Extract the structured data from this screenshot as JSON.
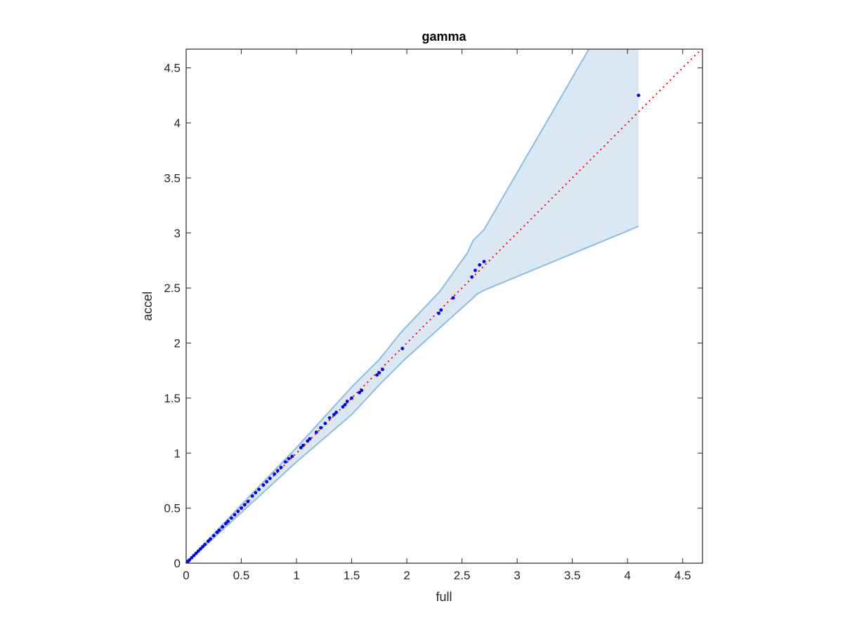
{
  "chart_data": {
    "type": "scatter",
    "title": "gamma",
    "xlabel": "full",
    "ylabel": "accel",
    "xlim": [
      0,
      4.68
    ],
    "ylim": [
      0,
      4.67
    ],
    "xticks": [
      0,
      0.5,
      1,
      1.5,
      2,
      2.5,
      3,
      3.5,
      4,
      4.5
    ],
    "yticks": [
      0,
      0.5,
      1,
      1.5,
      2,
      2.5,
      3,
      3.5,
      4,
      4.5
    ],
    "xtick_labels": [
      "0",
      "0.5",
      "1",
      "1.5",
      "2",
      "2.5",
      "3",
      "3.5",
      "4",
      "4.5"
    ],
    "ytick_labels": [
      "0",
      "0.5",
      "1",
      "1.5",
      "2",
      "2.5",
      "3",
      "3.5",
      "4",
      "4.5"
    ],
    "grid": false,
    "box": true,
    "colors": {
      "points": "#0000ff",
      "reference_line": "#ff0000",
      "band_fill": "#d9e8f3",
      "band_edge": "#8bbde0"
    },
    "reference_line": {
      "style": "dotted",
      "x": [
        0,
        4.68
      ],
      "y": [
        0,
        4.68
      ]
    },
    "band": {
      "upper": {
        "x": [
          0,
          0.5,
          1.0,
          1.5,
          1.75,
          1.95,
          2.3,
          2.55,
          2.6,
          2.7,
          3.65,
          4.1
        ],
        "y": [
          0,
          0.53,
          1.05,
          1.6,
          1.85,
          2.1,
          2.47,
          2.82,
          2.93,
          3.03,
          4.67,
          5.45
        ]
      },
      "lower": {
        "x": [
          0,
          0.5,
          1.0,
          1.5,
          1.75,
          1.98,
          2.6,
          2.63,
          2.7,
          4.1
        ],
        "y": [
          0,
          0.46,
          0.92,
          1.35,
          1.62,
          1.85,
          2.41,
          2.44,
          2.48,
          3.06
        ]
      }
    },
    "points": {
      "x": [
        0.01,
        0.02,
        0.03,
        0.05,
        0.07,
        0.09,
        0.11,
        0.13,
        0.15,
        0.17,
        0.2,
        0.22,
        0.25,
        0.28,
        0.3,
        0.33,
        0.36,
        0.38,
        0.41,
        0.44,
        0.47,
        0.5,
        0.53,
        0.56,
        0.6,
        0.63,
        0.66,
        0.7,
        0.73,
        0.76,
        0.8,
        0.83,
        0.86,
        0.9,
        0.93,
        0.96,
        1.04,
        1.06,
        1.1,
        1.12,
        1.18,
        1.22,
        1.26,
        1.3,
        1.34,
        1.36,
        1.42,
        1.44,
        1.46,
        1.5,
        1.57,
        1.59,
        1.73,
        1.75,
        1.78,
        1.96,
        2.29,
        2.31,
        2.42,
        2.59,
        2.62,
        2.66,
        2.7,
        4.1
      ],
      "y": [
        0.01,
        0.02,
        0.03,
        0.05,
        0.07,
        0.09,
        0.11,
        0.13,
        0.15,
        0.17,
        0.2,
        0.22,
        0.25,
        0.28,
        0.3,
        0.33,
        0.36,
        0.38,
        0.41,
        0.44,
        0.47,
        0.5,
        0.53,
        0.56,
        0.61,
        0.64,
        0.67,
        0.71,
        0.74,
        0.77,
        0.81,
        0.84,
        0.87,
        0.92,
        0.95,
        0.97,
        1.05,
        1.07,
        1.11,
        1.13,
        1.19,
        1.23,
        1.27,
        1.32,
        1.35,
        1.37,
        1.42,
        1.44,
        1.47,
        1.5,
        1.55,
        1.57,
        1.71,
        1.73,
        1.76,
        1.95,
        2.27,
        2.3,
        2.41,
        2.6,
        2.66,
        2.71,
        2.74,
        4.25
      ]
    }
  }
}
